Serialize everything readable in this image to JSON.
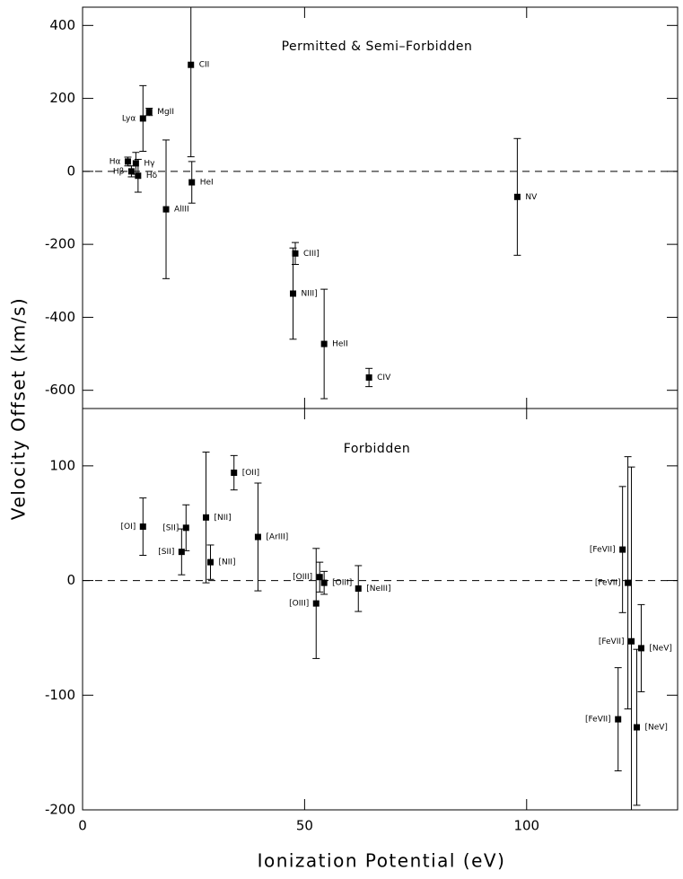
{
  "chart_data": [
    {
      "type": "scatter",
      "title": "Permitted & Semi–Forbidden",
      "ylabel": "Velocity Offset (km/s)",
      "x": [
        10.2,
        11,
        12,
        12.5,
        13.6,
        15,
        24.4,
        24.6,
        18.8,
        47.9,
        47.4,
        54.4,
        64.5,
        97.9
      ],
      "values": [
        27,
        0,
        22,
        -12,
        145,
        163,
        292,
        -30,
        -104,
        -225,
        -335,
        -473,
        -565,
        -70
      ],
      "errors": [
        12,
        15,
        30,
        45,
        90,
        10,
        252,
        57,
        190,
        30,
        125,
        150,
        25,
        160
      ],
      "labels": [
        "Hα",
        "Hβ",
        "Hγ",
        "Hδ",
        "Lyα",
        "MgII",
        "CII",
        "HeI",
        "AlIII",
        "CIII]",
        "NIII]",
        "HeII",
        "CIV",
        "NV"
      ],
      "color": "#000000",
      "reference_line": 0,
      "xlim": [
        0,
        134
      ],
      "ylim": [
        -650,
        450
      ],
      "yticks": [
        -600,
        -400,
        -200,
        0,
        200,
        400
      ],
      "xticks": [
        0,
        50,
        100
      ]
    },
    {
      "type": "scatter",
      "title": "Forbidden",
      "xlabel": "Ionization Potential (eV)",
      "x": [
        13.6,
        23.3,
        22.3,
        27.8,
        28.8,
        34.1,
        39.5,
        53.4,
        52.6,
        54.4,
        62.1,
        121.6,
        122.8,
        123.6,
        125.8,
        120.6,
        124.8
      ],
      "values": [
        47,
        46,
        25,
        55,
        16,
        94,
        38,
        3,
        -20,
        -2,
        -7,
        27,
        -2,
        -53,
        -59,
        -121,
        -128
      ],
      "errors": [
        25,
        20,
        20,
        57,
        15,
        15,
        47,
        13,
        48,
        10,
        20,
        55,
        110,
        152,
        38,
        45,
        68
      ],
      "labels": [
        "[OI]",
        "[SII]",
        "[SII]",
        "[NII]",
        "[NII]",
        "[OII]",
        "[ArIII]",
        "[OIII]",
        "[OIII]",
        "[OIII]",
        "[NeIII]",
        "[FeVII]",
        "[FeVII]",
        "[FeVII]",
        "[NeV]",
        "[FeVII]",
        "[NeV]"
      ],
      "color": "#000000",
      "reference_line": 0,
      "xlim": [
        0,
        134
      ],
      "ylim": [
        -200,
        150
      ],
      "yticks": [
        -200,
        -100,
        0,
        100
      ],
      "xticks": [
        0,
        50,
        100
      ]
    }
  ]
}
